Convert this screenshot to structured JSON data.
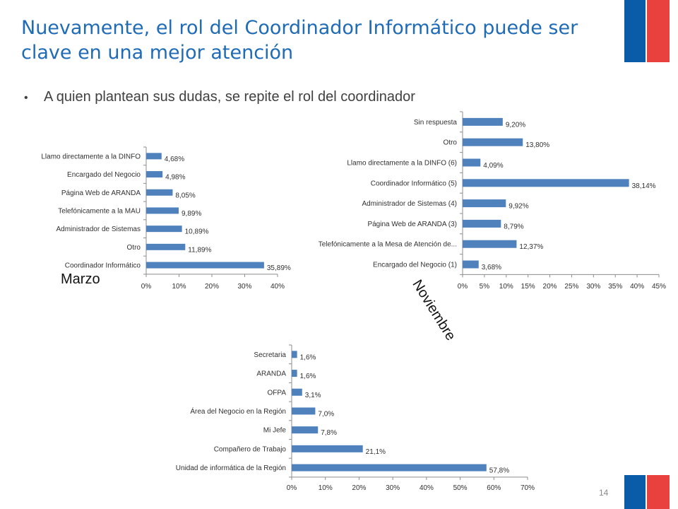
{
  "slide": {
    "title": "Nuevamente, el rol del Coordinador Informático puede ser clave en una mejor atención",
    "bullet": "A quien plantean sus dudas, se repite el rol del coordinador",
    "bullet_marker": "•",
    "tag_marzo": "Marzo",
    "tag_noviembre": "Noviembre",
    "page_number": "14"
  },
  "colors": {
    "title": "#1f6bb5",
    "bar": "#4f81bd",
    "flag_blue": "#0a5ba8",
    "flag_red": "#e8413e"
  },
  "chart_data": [
    {
      "type": "bar",
      "orientation": "horizontal",
      "categories": [
        "Llamo directamente a la DINFO",
        "Encargado del Negocio",
        "Página Web de ARANDA",
        "Telefónicamente a la MAU",
        "Administrador de Sistemas",
        "Otro",
        "Coordinador Informático"
      ],
      "values": [
        4.68,
        4.98,
        8.05,
        9.89,
        10.89,
        11.89,
        35.89
      ],
      "labels": [
        "4,68%",
        "4,98%",
        "8,05%",
        "9,89%",
        "10,89%",
        "11,89%",
        "35,89%"
      ],
      "xlim": [
        0,
        40
      ],
      "ticks": [
        "0%",
        "10%",
        "20%",
        "30%",
        "40%"
      ],
      "grid": false
    },
    {
      "type": "bar",
      "orientation": "horizontal",
      "categories": [
        "Sin respuesta",
        "Otro",
        "Llamo directamente a la DINFO (6)",
        "Coordinador Informático (5)",
        "Administrador de Sistemas (4)",
        "Página Web de ARANDA (3)",
        "Telefónicamente a la Mesa de Atención de...",
        "Encargado del Negocio (1)"
      ],
      "values": [
        9.2,
        13.8,
        4.09,
        38.14,
        9.92,
        8.79,
        12.37,
        3.68
      ],
      "labels": [
        "9,20%",
        "13,80%",
        "4,09%",
        "38,14%",
        "9,92%",
        "8,79%",
        "12,37%",
        "3,68%"
      ],
      "xlim": [
        0,
        45
      ],
      "ticks": [
        "0%",
        "5%",
        "10%",
        "15%",
        "20%",
        "25%",
        "30%",
        "35%",
        "40%",
        "45%"
      ],
      "grid": false
    },
    {
      "type": "bar",
      "orientation": "horizontal",
      "categories": [
        "Secretaria",
        "ARANDA",
        "OFPA",
        "Área del Negocio en la Región",
        "Mi Jefe",
        "Compañero de Trabajo",
        "Unidad de informática de la Región"
      ],
      "values": [
        1.6,
        1.6,
        3.1,
        7.0,
        7.8,
        21.1,
        57.8
      ],
      "labels": [
        "1,6%",
        "1,6%",
        "3,1%",
        "7,0%",
        "7,8%",
        "21,1%",
        "57,8%"
      ],
      "xlim": [
        0,
        70
      ],
      "ticks": [
        "0%",
        "10%",
        "20%",
        "30%",
        "40%",
        "50%",
        "60%",
        "70%"
      ],
      "grid": false
    }
  ]
}
